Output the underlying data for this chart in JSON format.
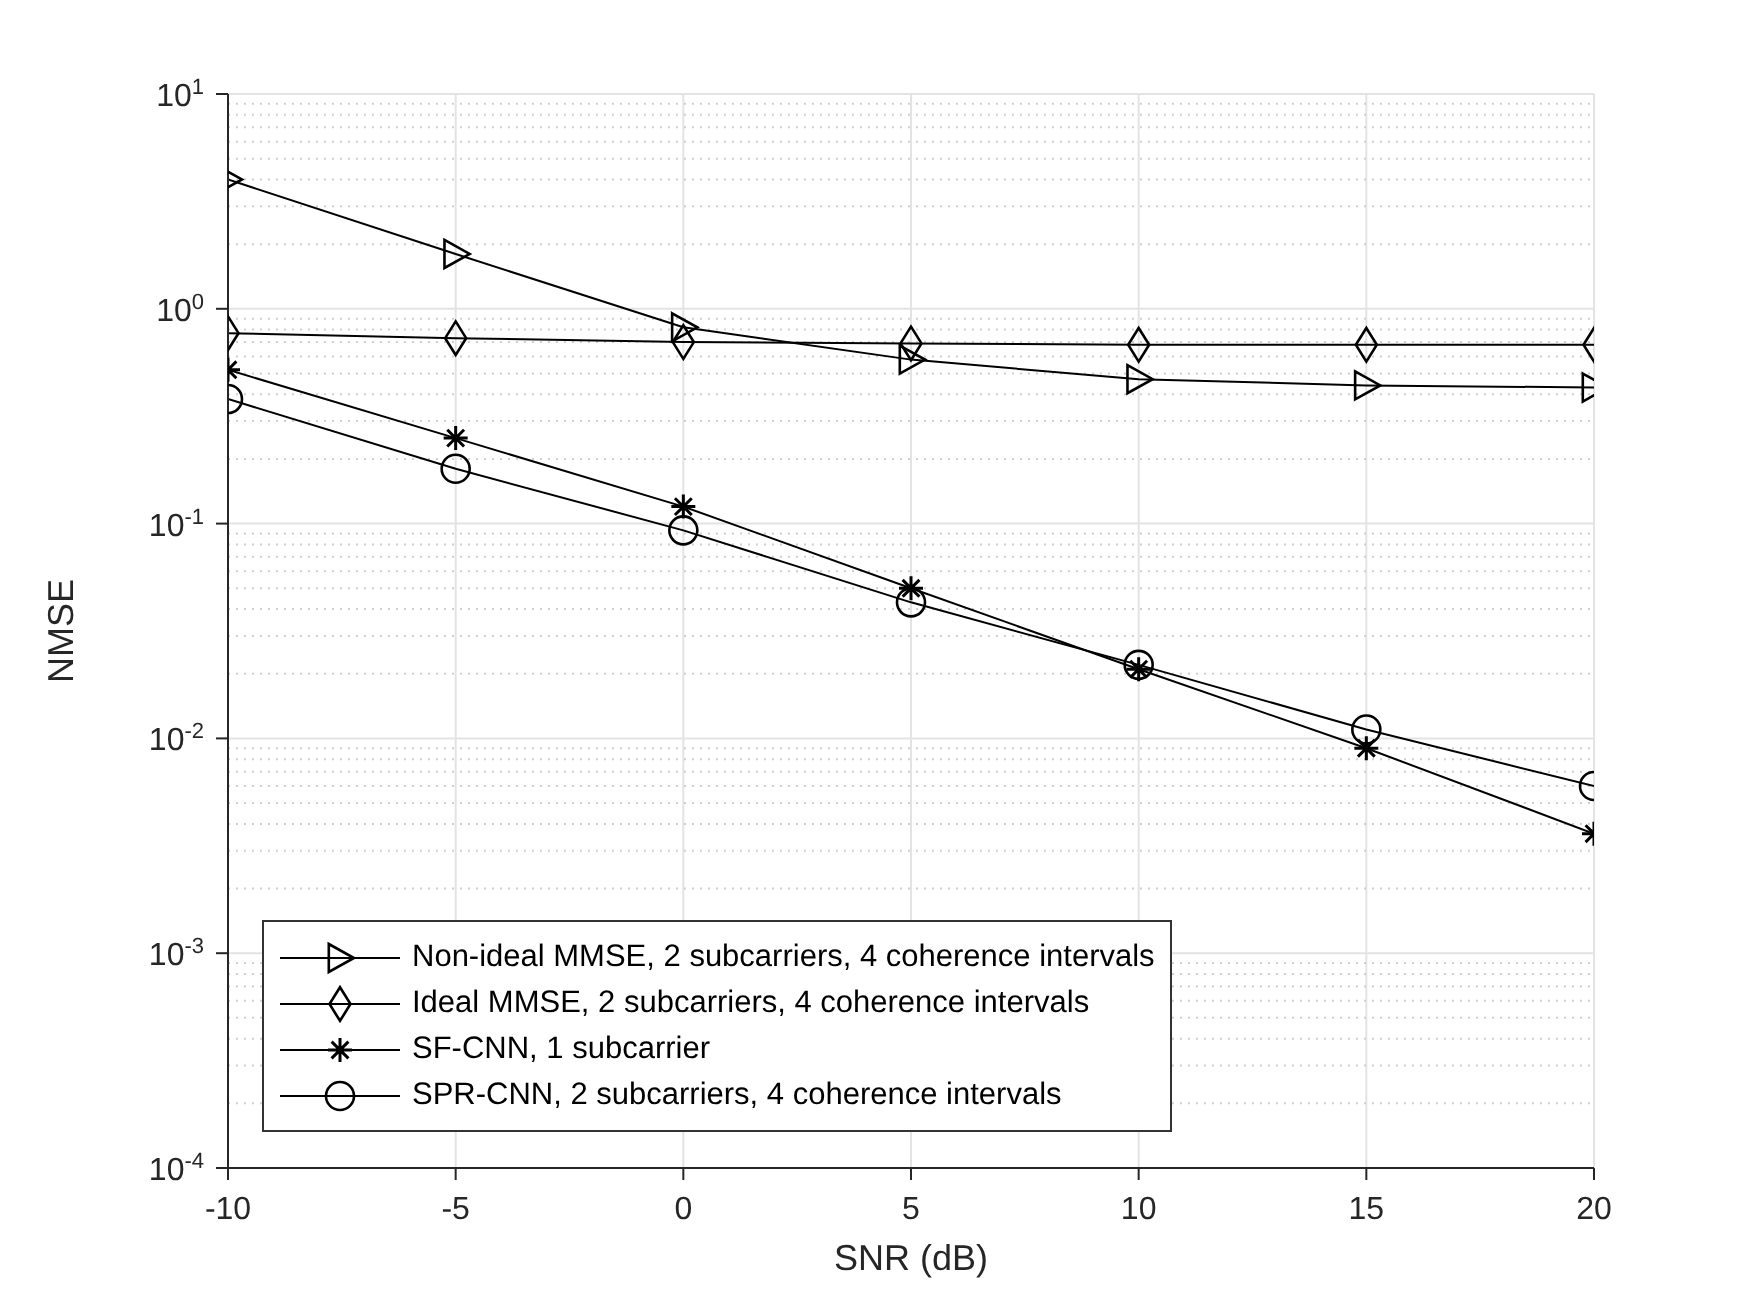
{
  "chart_data": {
    "type": "line",
    "xlabel": "SNR (dB)",
    "ylabel": "NMSE",
    "x": [
      -10,
      -5,
      0,
      5,
      10,
      15,
      20
    ],
    "series": [
      {
        "name": "Non-ideal MMSE, 2 subcarriers, 4 coherence intervals",
        "color": "#000000",
        "marker": "triangle",
        "values": [
          4.0,
          1.8,
          0.82,
          0.58,
          0.47,
          0.44,
          0.43
        ]
      },
      {
        "name": "Ideal MMSE, 2 subcarriers, 4 coherence intervals",
        "color": "#000000",
        "marker": "diamond",
        "values": [
          0.77,
          0.73,
          0.7,
          0.69,
          0.68,
          0.68,
          0.68
        ]
      },
      {
        "name": "SF-CNN, 1 subcarrier",
        "color": "#000000",
        "marker": "cross",
        "values": [
          0.52,
          0.25,
          0.12,
          0.05,
          0.021,
          0.009,
          0.0036
        ]
      },
      {
        "name": "SPR-CNN, 2 subcarriers, 4 coherence intervals",
        "color": "#000000",
        "marker": "circle",
        "values": [
          0.38,
          0.18,
          0.093,
          0.043,
          0.022,
          0.011,
          0.006
        ]
      }
    ],
    "xlim": [
      -10,
      20
    ],
    "xticks": [
      -10,
      -5,
      0,
      5,
      10,
      15,
      20
    ],
    "ylim": [
      0.0001,
      10
    ],
    "yticks": [
      {
        "value": 0.0001,
        "label": "10$^{-4}$"
      },
      {
        "value": 0.001,
        "label": "10$^{-3}$"
      },
      {
        "value": 0.01,
        "label": "10$^{-2}$"
      },
      {
        "value": 0.1,
        "label": "10$^{-1}$"
      },
      {
        "value": 1,
        "label": "10$^{0}$"
      },
      {
        "value": 10,
        "label": "10$^{1}$"
      }
    ],
    "log": "y",
    "grid": true,
    "legend": "bottom left",
    "line_style": "solid"
  }
}
